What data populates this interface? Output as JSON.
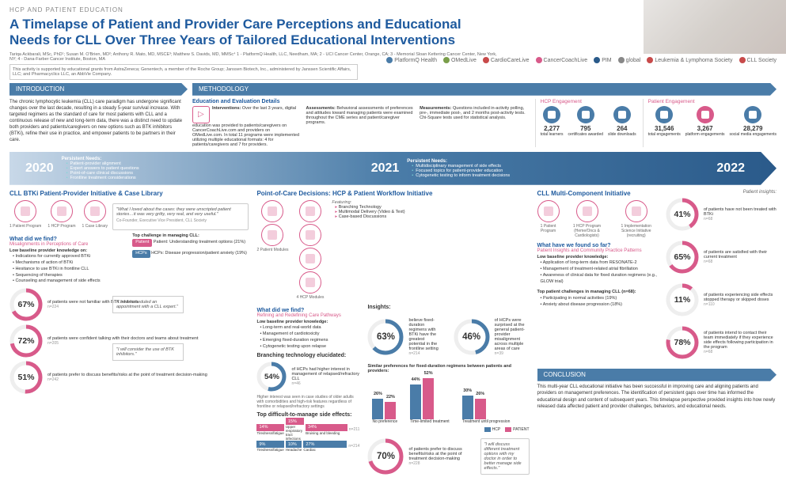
{
  "eyebrow": "HCP AND PATIENT EDUCATION",
  "title": "A Timelapse of Patient and Provider Care Perceptions and Educational Needs for CLL Over Three Years of Tailored Educational Interventions",
  "authors": "Tariqa Ackbarali, MSc, PhD¹; Susan M. O'Brien, MD²; Anthony R. Mato, MD, MSCE³; Matthew S. Davids, MD, MMSc⁴  1 - PlatformQ Health, LLC, Needham, MA; 2 - UCI Cancer Center, Orange, CA; 3 - Memorial Sloan Kettering Cancer Center, New York, NY; 4 - Dana-Farber Cancer Institute, Boston, MA",
  "disclaimer": "This activity is supported by educational grants from AstraZeneca; Genentech, a member of the Roche Group; Janssen Biotech, Inc., administered by Janssen Scientific Affairs, LLC; and Pharmacyclics LLC, an AbbVie Company.",
  "logos": [
    {
      "name": "PlatformQ Health",
      "color": "#4a7ca8"
    },
    {
      "name": "OMedLive",
      "color": "#7a9e4a"
    },
    {
      "name": "CardioCareLive",
      "color": "#c84a4a"
    },
    {
      "name": "CancerCoachLive",
      "color": "#d85a8a"
    },
    {
      "name": "PIM",
      "color": "#2a5a8a"
    },
    {
      "name": "global",
      "color": "#888"
    },
    {
      "name": "Leukemia & Lymphoma Society",
      "color": "#c84a4a"
    },
    {
      "name": "CLL Society",
      "color": "#c84a4a"
    }
  ],
  "sections": {
    "intro": "INTRODUCTION",
    "method": "METHODOLOGY",
    "conclusion": "CONCLUSION"
  },
  "intro_text": "The chronic lymphocytic leukemia (CLL) care paradigm has undergone significant changes over the last decade, resulting in a steady 5-year survival increase. With targeted regimens as the standard of care for most patients with CLL and a continuous release of new and long-term data, there was a distinct need to update both providers and patients/caregivers on new options such as BTK inhibitors (BTKi), refine their use in practice, and empower patients to be partners in their care.",
  "method": {
    "sub": "Education and Evaluation Details",
    "interventions": {
      "label": "Interventions:",
      "text": "Over the last 3 years, digital education was provided to patients/caregivers on CancerCoachLive.com and providers on OMedLive.com. In total 11 programs were implemented utilizing multiple educational formats: 4 for patients/caregivers and 7 for providers."
    },
    "assessments": {
      "label": "Assessments:",
      "text": "Behavioral assessments of preferences and attitudes toward managing patients were examined throughout the CME series and patient/caregiver programs."
    },
    "measurements": {
      "label": "Measurements:",
      "text": "Questions included in-activity polling, pre-, immediate post-, and 2 months post-activity tests. Chi-Square tests used for statistical analysis."
    }
  },
  "engagement": {
    "hcp": {
      "hdr": "HCP Engagement",
      "items": [
        {
          "num": "2,277",
          "label": "total learners"
        },
        {
          "num": "795",
          "label": "certificates awarded"
        },
        {
          "num": "264",
          "label": "slide downloads"
        }
      ]
    },
    "patient": {
      "hdr": "Patient Engagement",
      "items": [
        {
          "num": "31,546",
          "label": "total engagements"
        },
        {
          "num": "3,267",
          "label": "platform engagements"
        },
        {
          "num": "28,279",
          "label": "social media engagements"
        }
      ]
    }
  },
  "timeline": [
    {
      "year": "2020",
      "needs_hdr": "Persistent Needs:",
      "needs": [
        "Patient-provider alignment",
        "Expert answers to patient questions",
        "Point-of-care clinical discussions",
        "Frontline treatment considerations"
      ]
    },
    {
      "year": "2021",
      "needs_hdr": "Persistent Needs:",
      "needs": [
        "Multidisciplinary management of side effects",
        "Focused topics for patient-provider education",
        "Cytogenetic testing to inform treatment decisions"
      ]
    },
    {
      "year": "2022"
    }
  ],
  "col1": {
    "hdr": "CLL BTKi Patient-Provider Initiative & Case Library",
    "programs": [
      {
        "n": "1",
        "l": "Patient Program"
      },
      {
        "n": "1",
        "l": "HCP Program"
      },
      {
        "n": "1",
        "l": "Case Library"
      }
    ],
    "quote1": "\"What I loved about the cases: they were unscripted patient stories…it was very gritty, very real, and very useful.\"",
    "quote1_attr": "Co-Founder, Executive Vice President, CLL Society",
    "find_hdr": "What did we find?",
    "find_sub": "Misalignments in Perceptions of Care",
    "baseline_hdr": "Low baseline provider knowledge on:",
    "baseline": [
      "Indications for currently approved BTKi",
      "Mechanisms of action of BTKi",
      "Hesitance to use BTKi in frontline CLL",
      "Sequencing of therapies",
      "Counseling and management of side effects"
    ],
    "top_challenge_hdr": "Top challenge in managing CLL:",
    "top_challenge_pt": "Patient: Understanding treatment options (21%)",
    "top_challenge_hcp": "HCPs: Disease progression/patient anxiety (19%)",
    "donuts": [
      {
        "pct": 67,
        "label": "of patients were not familiar with BTK inhibitors",
        "n": "n=224",
        "color": "#d85a8a"
      },
      {
        "pct": 72,
        "label": "of patients were confident talking with their doctors and teams about treatment",
        "n": "n=205",
        "color": "#d85a8a"
      },
      {
        "pct": 51,
        "label": "of patients prefer to discuss benefits/risks at the point of treatment decision-making",
        "n": "n=242",
        "color": "#d85a8a"
      }
    ],
    "quote2": "\"I have scheduled an appointment with a CLL expert.\"",
    "quote3": "\"I will consider the use of BTK inhibitors.\""
  },
  "col2": {
    "hdr": "Point-of-Care Decisions: HCP & Patient Workflow Initiative",
    "programs": [
      {
        "n": "2",
        "l": "Patient Modules"
      },
      {
        "n": "4",
        "l": "HCP Modules"
      }
    ],
    "featuring_hdr": "Featuring:",
    "featuring": [
      "Branching Technology",
      "Multimodal Delivery (Video & Text)",
      "Case-based Discussions"
    ],
    "find_hdr": "What did we find?",
    "find_sub": "Refining and Redefining Care Pathways",
    "baseline_hdr": "Low baseline provider knowledge:",
    "baseline": [
      "Long-term and real-world data",
      "Management of cardiotoxicity",
      "Emerging fixed-duration regimens",
      "Cytogenetic testing upon relapse"
    ],
    "insights_hdr": "Insights:",
    "insight_donuts": [
      {
        "pct": 63,
        "label": "believe fixed-duration regimens with BTKi have the greatest potential in the frontline setting",
        "n": "n=214",
        "color": "#4a7ca8"
      },
      {
        "pct": 46,
        "label": "of HCPs were surprised at the general patient-provider misalignment across multiple areas of care",
        "n": "n=39",
        "color": "#4a7ca8"
      }
    ],
    "branch_hdr": "Branching technology elucidated:",
    "branch_donut": {
      "pct": 54,
      "label": "of HCPs had higher interest in management of relapsed/refractory CLL",
      "n": "n=46",
      "color": "#4a7ca8"
    },
    "branch_note": "Higher interest was seen in case studies of older adults with comorbidities and high-risk features regardless of frontline or relapsed/refractory settings",
    "similar_hdr": "Similar preferences for fixed-duration regimens between patients and providers:",
    "vbars": {
      "groups": [
        {
          "label": "No preference",
          "vals": [
            {
              "v": 26,
              "c": "blue"
            },
            {
              "v": 22,
              "c": "pink"
            }
          ]
        },
        {
          "label": "Time-limited treatment",
          "vals": [
            {
              "v": 44,
              "c": "blue"
            },
            {
              "v": 52,
              "c": "pink"
            }
          ]
        },
        {
          "label": "Treatment until progression",
          "vals": [
            {
              "v": 30,
              "c": "blue"
            },
            {
              "v": 26,
              "c": "pink"
            }
          ]
        }
      ],
      "legend": [
        {
          "l": "HCP",
          "c": "#4a7ca8"
        },
        {
          "l": "PATIENT",
          "c": "#d85a8a"
        }
      ]
    },
    "side_effects_hdr": "Top difficult-to-manage side effects:",
    "side_effects": {
      "row1": [
        {
          "l": "Tiredness/fatigue",
          "v": 14,
          "c": "pink"
        },
        {
          "l": "Upper respiratory tract infections",
          "v": 15,
          "c": "pink"
        },
        {
          "l": "Bruising and bleeding",
          "v": 34,
          "c": "pink"
        }
      ],
      "row1_n": "n=211",
      "row2": [
        {
          "l": "Tiredness/fatigue",
          "v": 9,
          "c": "blue"
        },
        {
          "l": "Headache",
          "v": 10,
          "c": "blue"
        },
        {
          "l": "Cardiac",
          "v": 27,
          "c": "blue"
        }
      ],
      "row2_n": "n=214"
    },
    "bottom_donut": {
      "pct": 70,
      "label": "of patients prefer to discuss benefits/risks at the point of treatment decision-making",
      "n": "n=228",
      "color": "#d85a8a"
    },
    "quote": "\"I will discuss different treatment options with my doctor in order to better manage side effects.\""
  },
  "col3": {
    "hdr": "CLL Multi-Component Initiative",
    "programs": [
      {
        "n": "1",
        "l": "Patient Program"
      },
      {
        "n": "1",
        "l": "HCP Program (Heme/Oncs & Cardiologists)"
      },
      {
        "n": "1",
        "l": "Implementation Science Initiative (recruiting)"
      }
    ],
    "find_hdr": "What have we found so far?",
    "find_sub": "Patient Insights and Community Practice Patterns",
    "baseline_hdr": "Low baseline provider knowledge:",
    "baseline": [
      "Application of long-term data from RESONATE-2",
      "Management of treatment-related atrial fibrillation",
      "Awareness of clinical data for fixed duration regimens (e.g., GLOW trial)"
    ],
    "challenges_hdr": "Top patient challenges in managing CLL (n=68):",
    "challenges": [
      "Participating in normal activities (19%)",
      "Anxiety about disease progression (18%)"
    ],
    "insights_hdr": "Patient insights:",
    "donuts": [
      {
        "pct": 41,
        "label": "of patients have not been treated with BTKi",
        "n": "n=68",
        "color": "#d85a8a"
      },
      {
        "pct": 65,
        "label": "of patients are satisfied with their current treatment",
        "n": "n=68",
        "color": "#d85a8a"
      },
      {
        "pct": 11,
        "label": "of patients experiencing side effects stopped therapy or skipped doses",
        "n": "n=110",
        "color": "#d85a8a"
      },
      {
        "pct": 78,
        "label": "of patients intend to contact their team immediately if they experience side effects following participation in the program",
        "n": "n=68",
        "color": "#d85a8a"
      }
    ]
  },
  "conclusion": "This multi-year CLL educational initiative has been successful in improving care and aligning patients and providers on management preferences. The identification of persistent gaps over time has informed the educational design and content of subsequent years. This timelapse perspective provided insights into how newly released data affected patient and provider challenges, behaviors, and educational needs."
}
